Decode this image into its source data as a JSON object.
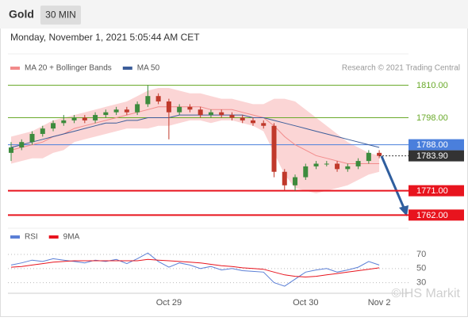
{
  "header": {
    "title": "Gold",
    "interval": "30 MIN",
    "date": "Monday, November 1, 2021 5:05:44 AM CET"
  },
  "source": "Research © 2021 Trading Central",
  "watermark": "©IHS Markit",
  "chart_data": [
    {
      "type": "candlestick",
      "categories": [
        null,
        null,
        null,
        null,
        null,
        null,
        null,
        null,
        null,
        null,
        null,
        null,
        null,
        null,
        null,
        "Oct 29",
        null,
        null,
        null,
        null,
        null,
        null,
        null,
        null,
        null,
        null,
        null,
        null,
        "Oct 30",
        null,
        null,
        null,
        null,
        null,
        null,
        "Nov 2"
      ],
      "open": [
        1785,
        1787,
        1789,
        1792,
        1794,
        1796,
        1797,
        1798,
        1797,
        1799,
        1800,
        1801,
        1800,
        1803,
        1806,
        1804,
        1800,
        1802,
        1801,
        1799,
        1800,
        1799,
        1798,
        1797,
        1796,
        1795,
        1778,
        1773,
        1776,
        1780,
        1781,
        1781,
        1779,
        1780,
        1782,
        1785
      ],
      "high": [
        1789,
        1790,
        1793,
        1795,
        1797,
        1799,
        1799,
        1799,
        1800,
        1801,
        1802,
        1802,
        1804,
        1810,
        1807,
        1805,
        1803,
        1803,
        1802,
        1801,
        1801,
        1800,
        1799,
        1798,
        1797,
        1796,
        1779,
        1777,
        1781,
        1782,
        1782,
        1782,
        1781,
        1783,
        1786,
        1786
      ],
      "low": [
        1782,
        1786,
        1788,
        1791,
        1793,
        1795,
        1796,
        1796,
        1796,
        1798,
        1799,
        1799,
        1799,
        1802,
        1803,
        1790,
        1799,
        1800,
        1798,
        1798,
        1798,
        1797,
        1796,
        1795,
        1794,
        1776,
        1771,
        1771,
        1775,
        1779,
        1780,
        1778,
        1778,
        1779,
        1781,
        1783
      ],
      "close": [
        1787,
        1789,
        1792,
        1794,
        1796,
        1797,
        1798,
        1797,
        1799,
        1800,
        1801,
        1800,
        1803,
        1806,
        1804,
        1800,
        1802,
        1801,
        1799,
        1800,
        1799,
        1798,
        1797,
        1796,
        1795,
        1778,
        1773,
        1776,
        1780,
        1781,
        1781,
        1779,
        1780,
        1782,
        1785,
        1783.9
      ],
      "up_color": "#3d8b3d",
      "down_color": "#c0392b",
      "series": [
        {
          "name": "MA 20 + Bollinger Bands",
          "color": "#f28b8b",
          "band_color": "#fbd5d5",
          "values": [
            1786,
            1787,
            1788,
            1789,
            1791,
            1792,
            1794,
            1795,
            1796,
            1797,
            1798,
            1799,
            1800,
            1801,
            1802,
            1802,
            1802,
            1802,
            1802,
            1801,
            1801,
            1801,
            1800,
            1799,
            1798,
            1795,
            1791,
            1788,
            1786,
            1784,
            1783,
            1782,
            1781,
            1781,
            1781,
            1781
          ],
          "upper": [
            1791,
            1792,
            1793,
            1795,
            1797,
            1798,
            1799,
            1800,
            1801,
            1802,
            1803,
            1804,
            1806,
            1808,
            1809,
            1809,
            1808,
            1807,
            1807,
            1806,
            1805,
            1805,
            1804,
            1803,
            1803,
            1805,
            1805,
            1804,
            1801,
            1798,
            1795,
            1792,
            1789,
            1787,
            1785,
            1784
          ],
          "lower": [
            1781,
            1782,
            1783,
            1783,
            1785,
            1786,
            1789,
            1790,
            1791,
            1792,
            1793,
            1794,
            1794,
            1794,
            1795,
            1795,
            1796,
            1797,
            1797,
            1796,
            1797,
            1797,
            1796,
            1795,
            1793,
            1785,
            1777,
            1772,
            1771,
            1770,
            1771,
            1772,
            1773,
            1775,
            1777,
            1778
          ]
        },
        {
          "name": "MA 50",
          "color": "#3c5d9a",
          "values": [
            1787,
            1788,
            1789,
            1790,
            1791,
            1792,
            1793,
            1794,
            1795,
            1796,
            1796,
            1797,
            1797,
            1798,
            1798,
            1798,
            1799,
            1799,
            1799,
            1799,
            1799,
            1799,
            1799,
            1798,
            1798,
            1797,
            1796,
            1795,
            1794,
            1793,
            1792,
            1791,
            1790,
            1789,
            1788,
            1787
          ]
        }
      ],
      "ylim": [
        1758,
        1821
      ],
      "levels": [
        {
          "value": 1810,
          "label": "1810.00",
          "color": "#6aaa2a",
          "boxed": false,
          "emphasis": false
        },
        {
          "value": 1798,
          "label": "1798.00",
          "color": "#6aaa2a",
          "boxed": false,
          "emphasis": false
        },
        {
          "value": 1788,
          "label": "1788.00",
          "color": "#4a7fdc",
          "boxed": true,
          "emphasis": false
        },
        {
          "value": 1771,
          "label": "1771.00",
          "color": "#e8141e",
          "boxed": true,
          "emphasis": true
        },
        {
          "value": 1762,
          "label": "1762.00",
          "color": "#e8141e",
          "boxed": true,
          "emphasis": true
        }
      ],
      "last": {
        "value": 1783.9,
        "label": "1783.90",
        "color": "#333333"
      }
    },
    {
      "type": "line",
      "series": [
        {
          "name": "RSI",
          "color": "#5b7fd6",
          "values": [
            55,
            58,
            62,
            60,
            64,
            62,
            60,
            58,
            62,
            60,
            63,
            57,
            64,
            72,
            60,
            52,
            58,
            55,
            50,
            53,
            48,
            50,
            47,
            46,
            45,
            30,
            25,
            35,
            45,
            48,
            50,
            45,
            48,
            52,
            60,
            55
          ]
        },
        {
          "name": "9MA",
          "color": "#e8141e",
          "values": [
            52,
            53,
            55,
            57,
            59,
            60,
            61,
            61,
            61,
            61,
            61,
            61,
            61,
            63,
            62,
            61,
            60,
            59,
            58,
            56,
            54,
            53,
            51,
            50,
            49,
            45,
            41,
            39,
            38,
            39,
            41,
            43,
            45,
            47,
            49,
            51
          ]
        }
      ],
      "ylim": [
        15,
        88
      ],
      "yticks": [
        70,
        50,
        30
      ]
    }
  ]
}
